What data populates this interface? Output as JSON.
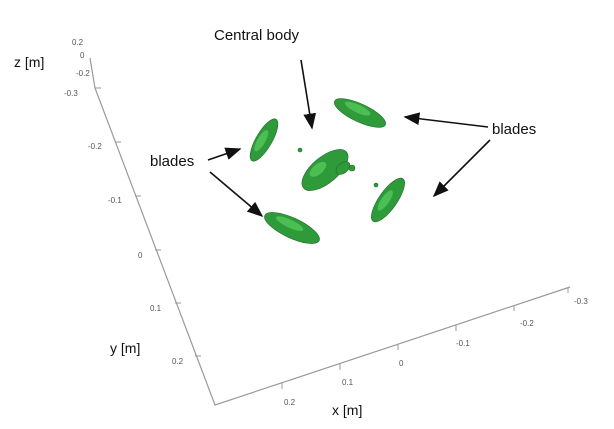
{
  "annotations": {
    "central": "Central body",
    "blades_left": "blades",
    "blades_right": "blades"
  },
  "axes": {
    "x": {
      "label": "x [m]",
      "ticks": [
        "0.2",
        "0.1",
        "0",
        "-0.1",
        "-0.2",
        "-0.3"
      ]
    },
    "y": {
      "label": "y [m]",
      "ticks": [
        "-0.3",
        "-0.2",
        "-0.1",
        "0",
        "0.1",
        "0.2"
      ]
    },
    "z": {
      "label": "z [m]",
      "ticks": [
        "0.2",
        "0",
        "-0.2"
      ]
    }
  }
}
